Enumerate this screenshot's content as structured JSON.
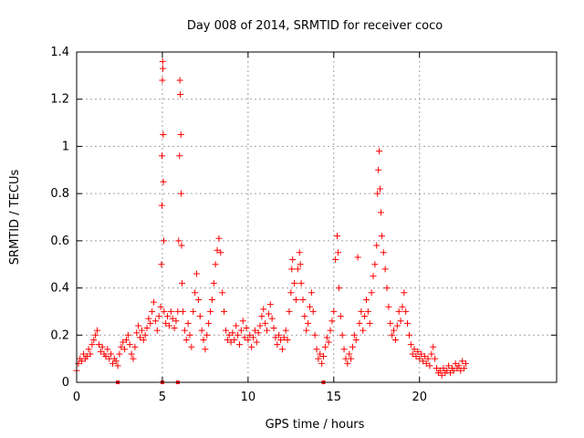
{
  "chart_data": {
    "type": "scatter",
    "title": "Day 008 of 2014, SRMTID for receiver coco",
    "xlabel": "GPS time / hours",
    "ylabel": "SRMTID / TECUs",
    "xlim": [
      0,
      28
    ],
    "ylim": [
      0,
      1.4
    ],
    "xticks": [
      0,
      5,
      10,
      15,
      20
    ],
    "xtick_labels": [
      "0",
      "5",
      "10",
      "15",
      "20"
    ],
    "yticks": [
      0,
      0.2,
      0.4,
      0.6,
      0.8,
      1.0,
      1.2,
      1.4
    ],
    "ytick_labels": [
      "0",
      "0.2",
      "0.4",
      "0.6",
      "0.8",
      "1",
      "1.2",
      "1.4"
    ],
    "grid": true,
    "marker": "plus",
    "series_color": "#ff0000",
    "series": [
      {
        "name": "SRMTID",
        "points": [
          [
            0.0,
            0.05
          ],
          [
            0.1,
            0.08
          ],
          [
            0.2,
            0.1
          ],
          [
            0.3,
            0.09
          ],
          [
            0.4,
            0.12
          ],
          [
            0.5,
            0.1
          ],
          [
            0.6,
            0.11
          ],
          [
            0.7,
            0.14
          ],
          [
            0.8,
            0.12
          ],
          [
            0.9,
            0.16
          ],
          [
            1.0,
            0.18
          ],
          [
            1.1,
            0.2
          ],
          [
            1.2,
            0.22
          ],
          [
            1.3,
            0.16
          ],
          [
            1.4,
            0.13
          ],
          [
            1.5,
            0.15
          ],
          [
            1.6,
            0.12
          ],
          [
            1.7,
            0.11
          ],
          [
            1.8,
            0.14
          ],
          [
            1.9,
            0.1
          ],
          [
            2.0,
            0.12
          ],
          [
            2.1,
            0.08
          ],
          [
            2.2,
            0.1
          ],
          [
            2.3,
            0.09
          ],
          [
            2.4,
            0.07
          ],
          [
            2.5,
            0.12
          ],
          [
            2.6,
            0.15
          ],
          [
            2.7,
            0.17
          ],
          [
            2.8,
            0.14
          ],
          [
            2.9,
            0.18
          ],
          [
            3.0,
            0.2
          ],
          [
            3.1,
            0.16
          ],
          [
            3.2,
            0.12
          ],
          [
            3.3,
            0.1
          ],
          [
            3.4,
            0.15
          ],
          [
            3.5,
            0.21
          ],
          [
            3.6,
            0.24
          ],
          [
            3.7,
            0.19
          ],
          [
            3.8,
            0.22
          ],
          [
            3.9,
            0.18
          ],
          [
            4.0,
            0.2
          ],
          [
            4.1,
            0.23
          ],
          [
            4.2,
            0.27
          ],
          [
            4.3,
            0.25
          ],
          [
            4.4,
            0.3
          ],
          [
            4.5,
            0.34
          ],
          [
            4.6,
            0.26
          ],
          [
            4.7,
            0.22
          ],
          [
            4.8,
            0.28
          ],
          [
            4.9,
            0.32
          ],
          [
            4.95,
            0.5
          ],
          [
            4.97,
            0.75
          ],
          [
            4.98,
            0.96
          ],
          [
            5.0,
            1.28
          ],
          [
            5.02,
            1.36
          ],
          [
            5.03,
            1.33
          ],
          [
            5.05,
            1.05
          ],
          [
            5.06,
            0.85
          ],
          [
            5.08,
            0.6
          ],
          [
            5.1,
            0.3
          ],
          [
            5.2,
            0.25
          ],
          [
            5.3,
            0.28
          ],
          [
            5.4,
            0.24
          ],
          [
            5.5,
            0.3
          ],
          [
            5.6,
            0.27
          ],
          [
            5.7,
            0.23
          ],
          [
            5.8,
            0.26
          ],
          [
            5.9,
            0.3
          ],
          [
            5.95,
            0.6
          ],
          [
            6.0,
            0.96
          ],
          [
            6.02,
            1.28
          ],
          [
            6.05,
            1.22
          ],
          [
            6.08,
            1.05
          ],
          [
            6.1,
            0.8
          ],
          [
            6.12,
            0.58
          ],
          [
            6.15,
            0.42
          ],
          [
            6.2,
            0.3
          ],
          [
            6.3,
            0.22
          ],
          [
            6.4,
            0.18
          ],
          [
            6.5,
            0.25
          ],
          [
            6.6,
            0.2
          ],
          [
            6.7,
            0.15
          ],
          [
            6.8,
            0.3
          ],
          [
            6.9,
            0.38
          ],
          [
            7.0,
            0.46
          ],
          [
            7.1,
            0.35
          ],
          [
            7.2,
            0.28
          ],
          [
            7.3,
            0.22
          ],
          [
            7.4,
            0.18
          ],
          [
            7.5,
            0.14
          ],
          [
            7.6,
            0.2
          ],
          [
            7.7,
            0.25
          ],
          [
            7.8,
            0.3
          ],
          [
            7.9,
            0.35
          ],
          [
            8.0,
            0.42
          ],
          [
            8.1,
            0.5
          ],
          [
            8.2,
            0.56
          ],
          [
            8.3,
            0.61
          ],
          [
            8.4,
            0.55
          ],
          [
            8.5,
            0.38
          ],
          [
            8.6,
            0.3
          ],
          [
            8.7,
            0.22
          ],
          [
            8.8,
            0.18
          ],
          [
            8.9,
            0.2
          ],
          [
            9.0,
            0.17
          ],
          [
            9.1,
            0.21
          ],
          [
            9.2,
            0.18
          ],
          [
            9.3,
            0.24
          ],
          [
            9.4,
            0.2
          ],
          [
            9.5,
            0.16
          ],
          [
            9.6,
            0.22
          ],
          [
            9.7,
            0.26
          ],
          [
            9.8,
            0.19
          ],
          [
            9.9,
            0.23
          ],
          [
            10.0,
            0.18
          ],
          [
            10.1,
            0.2
          ],
          [
            10.2,
            0.15
          ],
          [
            10.3,
            0.19
          ],
          [
            10.4,
            0.22
          ],
          [
            10.5,
            0.17
          ],
          [
            10.6,
            0.21
          ],
          [
            10.7,
            0.24
          ],
          [
            10.8,
            0.28
          ],
          [
            10.9,
            0.31
          ],
          [
            11.0,
            0.25
          ],
          [
            11.1,
            0.22
          ],
          [
            11.2,
            0.29
          ],
          [
            11.3,
            0.33
          ],
          [
            11.4,
            0.27
          ],
          [
            11.5,
            0.23
          ],
          [
            11.6,
            0.19
          ],
          [
            11.7,
            0.16
          ],
          [
            11.8,
            0.2
          ],
          [
            11.9,
            0.18
          ],
          [
            12.0,
            0.14
          ],
          [
            12.1,
            0.19
          ],
          [
            12.2,
            0.22
          ],
          [
            12.3,
            0.18
          ],
          [
            12.4,
            0.3
          ],
          [
            12.5,
            0.38
          ],
          [
            12.55,
            0.48
          ],
          [
            12.6,
            0.52
          ],
          [
            12.7,
            0.42
          ],
          [
            12.8,
            0.35
          ],
          [
            12.9,
            0.48
          ],
          [
            13.0,
            0.55
          ],
          [
            13.05,
            0.5
          ],
          [
            13.1,
            0.42
          ],
          [
            13.2,
            0.35
          ],
          [
            13.3,
            0.28
          ],
          [
            13.4,
            0.22
          ],
          [
            13.5,
            0.25
          ],
          [
            13.6,
            0.32
          ],
          [
            13.7,
            0.38
          ],
          [
            13.8,
            0.3
          ],
          [
            13.9,
            0.2
          ],
          [
            14.0,
            0.14
          ],
          [
            14.1,
            0.1
          ],
          [
            14.2,
            0.12
          ],
          [
            14.3,
            0.08
          ],
          [
            14.4,
            0.11
          ],
          [
            14.5,
            0.15
          ],
          [
            14.6,
            0.19
          ],
          [
            14.7,
            0.17
          ],
          [
            14.8,
            0.22
          ],
          [
            14.9,
            0.26
          ],
          [
            15.0,
            0.3
          ],
          [
            15.1,
            0.52
          ],
          [
            15.2,
            0.62
          ],
          [
            15.25,
            0.55
          ],
          [
            15.3,
            0.4
          ],
          [
            15.4,
            0.28
          ],
          [
            15.5,
            0.2
          ],
          [
            15.6,
            0.14
          ],
          [
            15.7,
            0.1
          ],
          [
            15.8,
            0.08
          ],
          [
            15.9,
            0.12
          ],
          [
            16.0,
            0.1
          ],
          [
            16.1,
            0.15
          ],
          [
            16.2,
            0.2
          ],
          [
            16.3,
            0.18
          ],
          [
            16.4,
            0.53
          ],
          [
            16.5,
            0.25
          ],
          [
            16.6,
            0.3
          ],
          [
            16.7,
            0.22
          ],
          [
            16.8,
            0.28
          ],
          [
            16.9,
            0.35
          ],
          [
            17.0,
            0.3
          ],
          [
            17.1,
            0.25
          ],
          [
            17.2,
            0.38
          ],
          [
            17.3,
            0.45
          ],
          [
            17.4,
            0.5
          ],
          [
            17.5,
            0.58
          ],
          [
            17.55,
            0.8
          ],
          [
            17.6,
            0.9
          ],
          [
            17.65,
            0.98
          ],
          [
            17.7,
            0.82
          ],
          [
            17.75,
            0.72
          ],
          [
            17.8,
            0.62
          ],
          [
            17.9,
            0.55
          ],
          [
            18.0,
            0.48
          ],
          [
            18.1,
            0.4
          ],
          [
            18.2,
            0.32
          ],
          [
            18.3,
            0.25
          ],
          [
            18.4,
            0.2
          ],
          [
            18.5,
            0.22
          ],
          [
            18.6,
            0.18
          ],
          [
            18.7,
            0.24
          ],
          [
            18.8,
            0.3
          ],
          [
            18.9,
            0.26
          ],
          [
            19.0,
            0.32
          ],
          [
            19.1,
            0.38
          ],
          [
            19.2,
            0.3
          ],
          [
            19.3,
            0.25
          ],
          [
            19.4,
            0.2
          ],
          [
            19.5,
            0.16
          ],
          [
            19.6,
            0.12
          ],
          [
            19.7,
            0.14
          ],
          [
            19.8,
            0.11
          ],
          [
            19.9,
            0.13
          ],
          [
            20.0,
            0.1
          ],
          [
            20.1,
            0.12
          ],
          [
            20.2,
            0.09
          ],
          [
            20.3,
            0.11
          ],
          [
            20.4,
            0.08
          ],
          [
            20.5,
            0.1
          ],
          [
            20.6,
            0.07
          ],
          [
            20.7,
            0.12
          ],
          [
            20.8,
            0.15
          ],
          [
            20.9,
            0.1
          ],
          [
            21.0,
            0.06
          ],
          [
            21.1,
            0.04
          ],
          [
            21.2,
            0.05
          ],
          [
            21.3,
            0.03
          ],
          [
            21.4,
            0.06
          ],
          [
            21.5,
            0.04
          ],
          [
            21.6,
            0.05
          ],
          [
            21.7,
            0.07
          ],
          [
            21.8,
            0.04
          ],
          [
            21.9,
            0.06
          ],
          [
            22.0,
            0.05
          ],
          [
            22.1,
            0.08
          ],
          [
            22.2,
            0.06
          ],
          [
            22.3,
            0.07
          ],
          [
            22.4,
            0.05
          ],
          [
            22.5,
            0.09
          ],
          [
            22.6,
            0.06
          ],
          [
            22.7,
            0.08
          ]
        ]
      }
    ],
    "zero_markers_x": [
      2.4,
      5.0,
      5.9,
      14.4
    ]
  }
}
